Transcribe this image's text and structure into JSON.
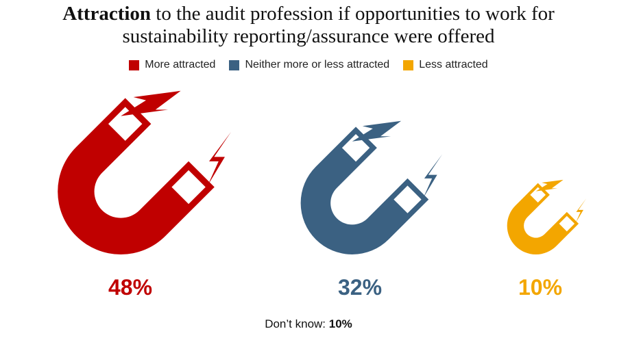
{
  "chart_data": {
    "type": "pictogram",
    "title_bold": "Attraction",
    "title": "to the audit profession if opportunities to work for sustainability reporting/assurance were offered",
    "categories": [
      "More attracted",
      "Neither more or less attracted",
      "Less attracted"
    ],
    "values": [
      48,
      32,
      10
    ],
    "value_labels": [
      "48%",
      "32%",
      "10%"
    ],
    "colors": [
      "#c00000",
      "#3b6182",
      "#f3a600"
    ],
    "note": {
      "label": "Don’t know:",
      "value": 10,
      "value_label": "10%"
    }
  }
}
